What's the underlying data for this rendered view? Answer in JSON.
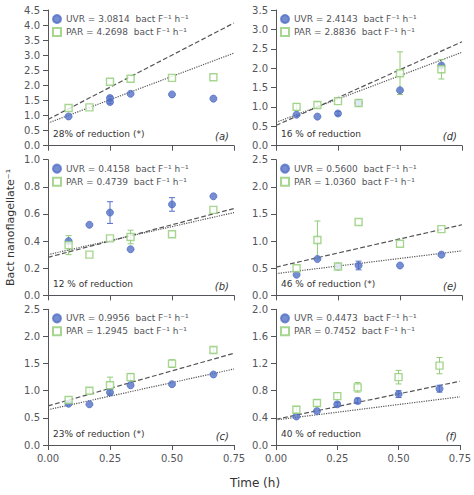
{
  "xlabel": "Time (h)",
  "ylabel": "Bact nanoflagellate⁻¹",
  "chart_data": [
    {
      "type": "scatter",
      "annotations": [
        "28% of reduction (*)",
        "(a)"
      ],
      "legend": "upper left",
      "grid": false,
      "tick_labels": "y",
      "xlim": [
        0.0,
        0.75
      ],
      "xticks": [
        0.0,
        0.25,
        0.5,
        0.75
      ],
      "ylim": [
        0.0,
        4.5
      ],
      "yticks": [
        {
          "value": 0.0,
          "label": "0.0"
        },
        {
          "value": 0.5,
          "label": "0.5"
        },
        {
          "value": 1.0,
          "label": "1.0"
        },
        {
          "value": 1.5,
          "label": "1.5"
        },
        {
          "value": 2.0,
          "label": "2.0"
        },
        {
          "value": 2.5,
          "label": "2.5"
        },
        {
          "value": 3.0,
          "label": "3.0"
        },
        {
          "value": 3.5,
          "label": "3.5"
        },
        {
          "value": 4.0,
          "label": "4.0"
        },
        {
          "value": 4.5,
          "label": "4.5"
        }
      ],
      "series": [
        {
          "name": "UVR = 3.0814  bact F⁻¹ h⁻¹",
          "type": "scatter",
          "marker": "circle",
          "x": [
            0.083,
            0.25,
            0.25,
            0.333,
            0.5,
            0.667
          ],
          "values": [
            0.97,
            1.45,
            1.58,
            1.72,
            1.7,
            1.56
          ],
          "yerr": [
            0.0,
            0.06,
            0.06,
            0.0,
            0.0,
            0.0
          ]
        },
        {
          "name": "PAR = 4.2698  bact F⁻¹ h⁻¹",
          "type": "scatter",
          "marker": "open_square",
          "x": [
            0.083,
            0.167,
            0.25,
            0.333,
            0.5,
            0.667
          ],
          "values": [
            1.25,
            1.27,
            2.12,
            2.22,
            2.25,
            2.27
          ],
          "yerr": [
            0.0,
            0.0,
            0.0,
            0.0,
            0.0,
            0.0
          ]
        },
        {
          "type": "line",
          "line_style": "dotted",
          "x": [
            0.0,
            0.75
          ],
          "values": [
            0.75,
            3.07
          ]
        },
        {
          "type": "line",
          "line_style": "dashed",
          "x": [
            0.0,
            0.75
          ],
          "values": [
            0.87,
            4.07
          ]
        }
      ]
    },
    {
      "type": "scatter",
      "annotations": [
        "16 % of reduction",
        "(d)"
      ],
      "legend": "upper left",
      "grid": false,
      "tick_labels": "y",
      "xlim": [
        0.0,
        0.75
      ],
      "xticks": [
        0.0,
        0.25,
        0.5,
        0.75
      ],
      "ylim": [
        0.0,
        3.5
      ],
      "yticks": [
        {
          "value": 0.0,
          "label": "0.0"
        },
        {
          "value": 0.5,
          "label": "0.5"
        },
        {
          "value": 1.0,
          "label": "1.0"
        },
        {
          "value": 1.5,
          "label": "1.5"
        },
        {
          "value": 2.0,
          "label": "2.0"
        },
        {
          "value": 2.5,
          "label": "2.5"
        },
        {
          "value": 3.0,
          "label": "3.0"
        },
        {
          "value": 3.5,
          "label": "3.5"
        }
      ],
      "series": [
        {
          "name": "UVR = 2.4143  bact F⁻¹ h⁻¹",
          "type": "scatter",
          "marker": "circle",
          "x": [
            0.083,
            0.167,
            0.25,
            0.333,
            0.5,
            0.667
          ],
          "values": [
            0.8,
            0.75,
            0.83,
            1.1,
            1.43,
            2.07
          ],
          "yerr": [
            0.0,
            0.0,
            0.05,
            0.0,
            0.0,
            0.0
          ]
        },
        {
          "name": "PAR = 2.8836  bact F⁻¹ h⁻¹",
          "type": "scatter",
          "marker": "open_square",
          "x": [
            0.083,
            0.167,
            0.25,
            0.333,
            0.5,
            0.667
          ],
          "values": [
            1.0,
            1.05,
            1.15,
            1.1,
            1.87,
            1.97
          ],
          "yerr": [
            0.08,
            0.08,
            0.0,
            0.0,
            0.55,
            0.25
          ]
        },
        {
          "type": "line",
          "line_style": "dotted",
          "x": [
            0.0,
            0.75
          ],
          "values": [
            0.6,
            2.41
          ]
        },
        {
          "type": "line",
          "line_style": "dashed",
          "x": [
            0.0,
            0.75
          ],
          "values": [
            0.52,
            2.68
          ]
        }
      ]
    },
    {
      "type": "scatter",
      "annotations": [
        "12 % of reduction",
        "(b)"
      ],
      "legend": "upper left",
      "grid": false,
      "tick_labels": "y",
      "xlim": [
        0.0,
        0.75
      ],
      "xticks": [
        0.0,
        0.25,
        0.5,
        0.75
      ],
      "ylim": [
        0.0,
        1.0
      ],
      "yticks": [
        {
          "value": 0.0,
          "label": "0.0"
        },
        {
          "value": 0.2,
          "label": "0.2"
        },
        {
          "value": 0.4,
          "label": "0.4"
        },
        {
          "value": 0.6,
          "label": "0.6"
        },
        {
          "value": 0.8,
          "label": "0.8"
        },
        {
          "value": 1.0,
          "label": "1.0"
        }
      ],
      "series": [
        {
          "name": "UVR = 0.4158  bact F⁻¹ h⁻¹",
          "type": "scatter",
          "marker": "circle",
          "x": [
            0.083,
            0.167,
            0.25,
            0.333,
            0.5,
            0.667
          ],
          "values": [
            0.4,
            0.52,
            0.61,
            0.34,
            0.67,
            0.73
          ],
          "yerr": [
            0.0,
            0.0,
            0.08,
            0.0,
            0.05,
            0.0
          ]
        },
        {
          "name": "PAR = 0.4739  bact F⁻¹ h⁻¹",
          "type": "scatter",
          "marker": "open_square",
          "x": [
            0.083,
            0.167,
            0.25,
            0.333,
            0.5,
            0.667
          ],
          "values": [
            0.37,
            0.3,
            0.42,
            0.43,
            0.45,
            0.63
          ],
          "yerr": [
            0.07,
            0.0,
            0.0,
            0.05,
            0.0,
            0.0
          ]
        },
        {
          "type": "line",
          "line_style": "dotted",
          "x": [
            0.0,
            0.75
          ],
          "values": [
            0.3,
            0.61
          ]
        },
        {
          "type": "line",
          "line_style": "dashed",
          "x": [
            0.0,
            0.75
          ],
          "values": [
            0.28,
            0.64
          ]
        }
      ]
    },
    {
      "type": "scatter",
      "annotations": [
        "46 % of reduction (*)",
        "(e)"
      ],
      "legend": "upper left",
      "grid": false,
      "tick_labels": "y",
      "xlim": [
        0.0,
        0.75
      ],
      "xticks": [
        0.0,
        0.25,
        0.5,
        0.75
      ],
      "ylim": [
        0.0,
        2.5
      ],
      "yticks": [
        {
          "value": 0.0,
          "label": "0.0"
        },
        {
          "value": 0.5,
          "label": "0.5"
        },
        {
          "value": 1.0,
          "label": "1.0"
        },
        {
          "value": 1.5,
          "label": "1.5"
        },
        {
          "value": 2.0,
          "label": "2.0"
        },
        {
          "value": 2.5,
          "label": "2.5"
        }
      ],
      "series": [
        {
          "name": "UVR = 0.5600  bact F⁻¹ h⁻¹",
          "type": "scatter",
          "marker": "circle",
          "x": [
            0.083,
            0.167,
            0.25,
            0.333,
            0.5,
            0.667
          ],
          "values": [
            0.38,
            0.67,
            0.53,
            0.55,
            0.55,
            0.75
          ],
          "yerr": [
            0.0,
            0.0,
            0.0,
            0.08,
            0.0,
            0.0
          ]
        },
        {
          "name": "PAR = 1.0360  bact F⁻¹ h⁻¹",
          "type": "scatter",
          "marker": "open_square",
          "x": [
            0.083,
            0.167,
            0.25,
            0.333,
            0.5,
            0.667
          ],
          "values": [
            0.5,
            1.02,
            0.53,
            1.35,
            0.95,
            1.22
          ],
          "yerr": [
            0.0,
            0.35,
            0.0,
            0.0,
            0.0,
            0.0
          ]
        },
        {
          "type": "line",
          "line_style": "dotted",
          "x": [
            0.0,
            0.75
          ],
          "values": [
            0.4,
            0.82
          ]
        },
        {
          "type": "line",
          "line_style": "dashed",
          "x": [
            0.0,
            0.75
          ],
          "values": [
            0.52,
            1.3
          ]
        }
      ]
    },
    {
      "type": "scatter",
      "annotations": [
        "23% of reduction (*)",
        "(c)"
      ],
      "legend": "upper left",
      "grid": false,
      "xlim": [
        0.0,
        0.75
      ],
      "xticks": [
        {
          "value": 0.0,
          "label": "0.00"
        },
        {
          "value": 0.25,
          "label": "0.25"
        },
        {
          "value": 0.5,
          "label": "0.50"
        },
        {
          "value": 0.75,
          "label": "0.75"
        }
      ],
      "ylim": [
        0.0,
        2.5
      ],
      "yticks": [
        {
          "value": 0.0,
          "label": "0.0"
        },
        {
          "value": 0.5,
          "label": "0.5"
        },
        {
          "value": 1.0,
          "label": "1.0"
        },
        {
          "value": 1.5,
          "label": "1.5"
        },
        {
          "value": 2.0,
          "label": "2.0"
        },
        {
          "value": 2.5,
          "label": "2.5"
        }
      ],
      "series": [
        {
          "name": "UVR = 0.9956  bact F⁻¹ h⁻¹",
          "type": "scatter",
          "marker": "circle",
          "x": [
            0.083,
            0.167,
            0.25,
            0.333,
            0.5,
            0.667
          ],
          "values": [
            0.76,
            0.75,
            0.97,
            1.1,
            1.12,
            1.3
          ],
          "yerr": [
            0.0,
            0.0,
            0.05,
            0.0,
            0.0,
            0.0
          ]
        },
        {
          "name": "PAR = 1.2945  bact F⁻¹ h⁻¹",
          "type": "scatter",
          "marker": "open_square",
          "x": [
            0.083,
            0.167,
            0.25,
            0.333,
            0.5,
            0.667
          ],
          "values": [
            0.83,
            1.0,
            1.1,
            1.25,
            1.5,
            1.75
          ],
          "yerr": [
            0.0,
            0.05,
            0.15,
            0.07,
            0.07,
            0.05
          ]
        },
        {
          "type": "line",
          "line_style": "dotted",
          "x": [
            0.0,
            0.75
          ],
          "values": [
            0.65,
            1.4
          ]
        },
        {
          "type": "line",
          "line_style": "dashed",
          "x": [
            0.0,
            0.75
          ],
          "values": [
            0.72,
            1.69
          ]
        }
      ]
    },
    {
      "type": "scatter",
      "annotations": [
        "40 % of reduction",
        "(f)"
      ],
      "legend": "upper left",
      "grid": false,
      "xlim": [
        0.0,
        0.75
      ],
      "xticks": [
        {
          "value": 0.0,
          "label": "0.00"
        },
        {
          "value": 0.25,
          "label": "0.25"
        },
        {
          "value": 0.5,
          "label": "0.50"
        },
        {
          "value": 0.75,
          "label": "0.75"
        }
      ],
      "ylim": [
        0.0,
        2.0
      ],
      "yticks": [
        {
          "value": 0.0,
          "label": "0.0"
        },
        {
          "value": 0.4,
          "label": "0.4"
        },
        {
          "value": 0.8,
          "label": "0.8"
        },
        {
          "value": 1.2,
          "label": "1.2"
        },
        {
          "value": 1.6,
          "label": "1.6"
        },
        {
          "value": 2.0,
          "label": "2.0"
        }
      ],
      "series": [
        {
          "name": "UVR = 0.4473  bact F⁻¹ h⁻¹",
          "type": "scatter",
          "marker": "circle",
          "x": [
            0.083,
            0.167,
            0.25,
            0.333,
            0.5,
            0.667
          ],
          "values": [
            0.42,
            0.5,
            0.6,
            0.65,
            0.75,
            0.83
          ],
          "yerr": [
            0.0,
            0.0,
            0.03,
            0.04,
            0.05,
            0.05
          ]
        },
        {
          "name": "PAR = 0.7452  bact F⁻¹ h⁻¹",
          "type": "scatter",
          "marker": "open_square",
          "x": [
            0.083,
            0.167,
            0.25,
            0.333,
            0.5,
            0.667
          ],
          "values": [
            0.52,
            0.62,
            0.72,
            0.85,
            1.0,
            1.17
          ],
          "yerr": [
            0.05,
            0.05,
            0.05,
            0.07,
            0.1,
            0.12
          ]
        },
        {
          "type": "line",
          "line_style": "dotted",
          "x": [
            0.0,
            0.75
          ],
          "values": [
            0.37,
            0.71
          ]
        },
        {
          "type": "line",
          "line_style": "dashed",
          "x": [
            0.0,
            0.75
          ],
          "values": [
            0.38,
            0.94
          ]
        }
      ]
    }
  ]
}
